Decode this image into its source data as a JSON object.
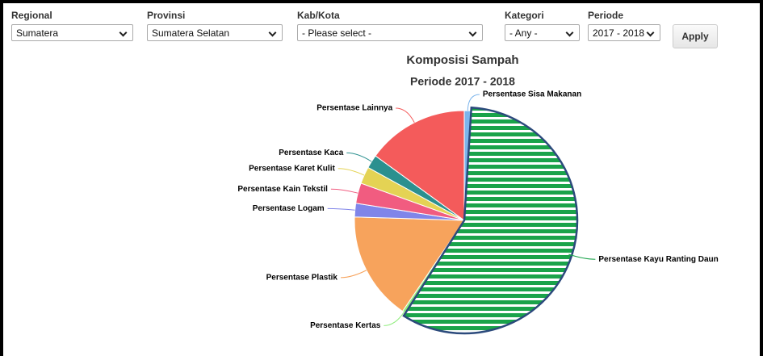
{
  "filters": [
    {
      "label": "Regional",
      "value": "Sumatera"
    },
    {
      "label": "Provinsi",
      "value": "Sumatera Selatan"
    },
    {
      "label": "Kab/Kota",
      "value": "- Please select -"
    },
    {
      "label": "Kategori",
      "value": "- Any -"
    },
    {
      "label": "Periode",
      "value": "2017 - 2018"
    }
  ],
  "button": "Apply",
  "chart_data": {
    "type": "pie",
    "title": "Komposisi Sampah",
    "subtitle": "Periode 2017 - 2018",
    "categories": [
      "Persentase Sisa Makanan",
      "Persentase Kayu Ranting Daun",
      "Persentase Kertas",
      "Persentase Plastik",
      "Persentase Logam",
      "Persentase Kain Tekstil",
      "Persentase Karet Kulit",
      "Persentase Kaca",
      "Persentase Lainnya"
    ],
    "values": [
      1,
      58,
      0.5,
      16,
      2,
      3,
      2.5,
      2,
      15
    ],
    "colors": [
      "#7cb5ec",
      "#1aa34a",
      "#90ed7d",
      "#f7a35c",
      "#8085e9",
      "#f15c80",
      "#e4d354",
      "#2b908f",
      "#f45b5b"
    ],
    "highlighted": 1
  }
}
